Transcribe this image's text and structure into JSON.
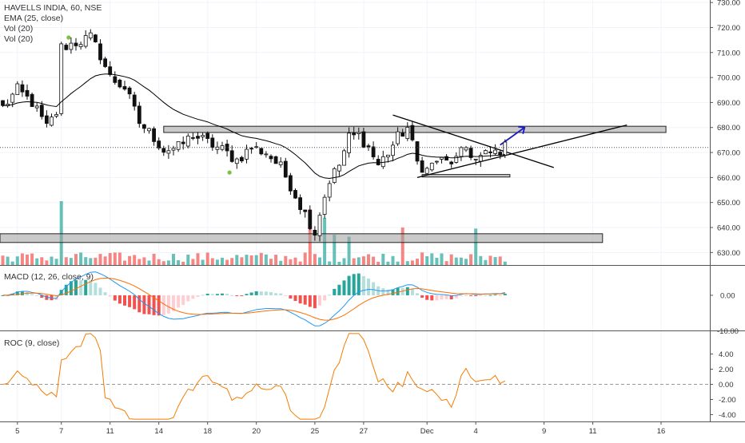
{
  "header": {
    "symbol_line": "HAVELLS INDIA, 60, NSE",
    "indicator_ema": "EMA (25, close)",
    "indicator_vol1": "Vol (20)",
    "indicator_vol2": "Vol (20)"
  },
  "macd_pane": {
    "title": "MACD (12, 26, close, 9)"
  },
  "roc_pane": {
    "title": "ROC (9, close)"
  },
  "colors": {
    "up": "#26a69a",
    "down": "#ef5350",
    "ema": "#000000",
    "macd_line": "#2196f3",
    "signal_line": "#ff6d00",
    "roc_line": "#f57c00",
    "hist_up_strong": "#26a69a",
    "hist_up_weak": "#b2dfdb",
    "hist_down_strong": "#ef5350",
    "hist_down_weak": "#ffcdd2",
    "zone_fill": "#9e9e9e",
    "arrow": "#1a1acc",
    "grid": "#f0f3fa",
    "axis_text": "#333333"
  },
  "chart_data": [
    {
      "type": "candlestick",
      "name": "price",
      "ylim": [
        625,
        731
      ],
      "y_ticks": [
        "730.00",
        "720.00",
        "710.00",
        "700.00",
        "690.00",
        "680.00",
        "670.00",
        "660.00",
        "650.00",
        "640.00",
        "630.00"
      ],
      "y_tick_values": [
        730,
        720,
        710,
        700,
        690,
        680,
        670,
        660,
        650,
        640,
        630
      ],
      "x_tick_labels": [
        "5",
        "7",
        "11",
        "14",
        "18",
        "20",
        "25",
        "27",
        "Dec",
        "4",
        "9",
        "11",
        "16"
      ],
      "x_tick_index": [
        3,
        12,
        22,
        32,
        42,
        52,
        64,
        74,
        87,
        97,
        111,
        121,
        135
      ],
      "last_price_line": 672,
      "waypoints": [
        [
          0,
          688
        ],
        [
          3,
          695
        ],
        [
          6,
          690
        ],
        [
          9,
          680
        ],
        [
          11,
          686
        ],
        [
          12,
          712
        ],
        [
          15,
          714
        ],
        [
          18,
          716
        ],
        [
          20,
          709
        ],
        [
          22,
          700
        ],
        [
          25,
          696
        ],
        [
          28,
          682
        ],
        [
          31,
          676
        ],
        [
          33,
          671
        ],
        [
          36,
          672
        ],
        [
          39,
          677
        ],
        [
          42,
          674
        ],
        [
          45,
          671
        ],
        [
          48,
          667
        ],
        [
          51,
          672
        ],
        [
          54,
          670
        ],
        [
          57,
          664
        ],
        [
          59,
          657
        ],
        [
          61,
          649
        ],
        [
          63,
          642
        ],
        [
          64,
          638
        ],
        [
          65,
          646
        ],
        [
          67,
          659
        ],
        [
          69,
          665
        ],
        [
          71,
          676
        ],
        [
          73,
          677
        ],
        [
          75,
          672
        ],
        [
          77,
          665
        ],
        [
          79,
          670
        ],
        [
          81,
          676
        ],
        [
          83,
          680
        ],
        [
          85,
          666
        ],
        [
          87,
          663
        ],
        [
          89,
          667
        ],
        [
          91,
          666
        ],
        [
          93,
          667
        ],
        [
          95,
          672
        ],
        [
          97,
          667
        ],
        [
          99,
          669
        ],
        [
          101,
          670
        ],
        [
          103,
          672
        ]
      ],
      "ema_period": 25,
      "drawings": {
        "resistance_zone": [
          678,
          680.5
        ],
        "support_zone": [
          634,
          637.5
        ],
        "small_zone": [
          660.2,
          661.2
        ],
        "triangle_upper_line": [
          [
            80,
            685
          ],
          [
            113,
            664
          ]
        ],
        "triangle_lower_line": [
          [
            85,
            660
          ],
          [
            128,
            681
          ]
        ],
        "breakout_arrow": [
          [
            102,
            673
          ],
          [
            107,
            680
          ]
        ]
      },
      "visible_markers": [
        [
          13.5,
          716
        ],
        [
          46.5,
          662
        ]
      ]
    },
    {
      "type": "volume",
      "name": "volume",
      "ylim": [
        0,
        1
      ],
      "spike_indices": [
        12,
        63,
        66,
        68,
        71,
        82,
        97
      ]
    },
    {
      "type": "macd",
      "name": "macd",
      "title": "MACD (12, 26, close, 9)",
      "ylim": [
        -10.5,
        9
      ],
      "y_ticks": [
        "0.00"
      ],
      "y_tick_values": [
        0
      ],
      "edge_tick_text": "-10.00"
    },
    {
      "type": "line",
      "name": "roc",
      "title": "ROC (9, close)",
      "ylim": [
        -4.9,
        7
      ],
      "y_ticks": [
        "4.00",
        "2.00",
        "0.00",
        "-2.00",
        "-4.00"
      ],
      "y_tick_values": [
        4,
        2,
        0,
        -2,
        -4
      ]
    }
  ]
}
